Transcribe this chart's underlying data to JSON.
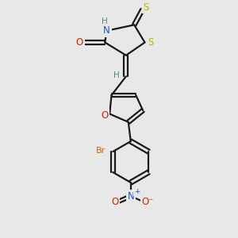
{
  "bg_color": "#e8e8e8",
  "bond_color": "#1a1a1a",
  "atom_colors": {
    "S": "#b8b800",
    "N": "#1a56c4",
    "O": "#cc2200",
    "Br": "#cc6600",
    "H": "#4a8a8a",
    "C": "#1a1a1a"
  },
  "figsize": [
    3.0,
    3.0
  ],
  "dpi": 100
}
